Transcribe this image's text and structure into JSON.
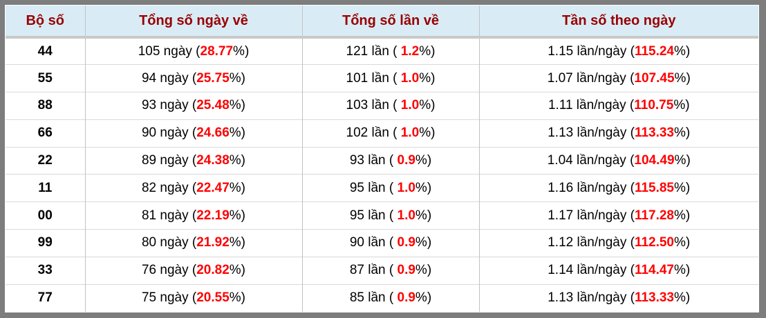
{
  "colors": {
    "frame_border": "#7d7d7d",
    "header_background": "#d9ecf6",
    "header_text": "#990000",
    "highlight_value": "#ff0000",
    "body_text": "#000000",
    "row_separator": "#d9d9d9",
    "column_separator": "#c2c2c2"
  },
  "table": {
    "headers": [
      "Bộ số",
      "Tổng số ngày về",
      "Tổng số lần về",
      "Tần số theo ngày"
    ],
    "rows": [
      {
        "pair": "44",
        "days": {
          "pre": "105 ngày (",
          "value": "28.77",
          "post": "%)"
        },
        "times": {
          "pre": "121 lần ( ",
          "value": "1.2",
          "post": "%)"
        },
        "freq": {
          "pre": "1.15 lần/ngày (",
          "value": "115.24",
          "post": "%)"
        }
      },
      {
        "pair": "55",
        "days": {
          "pre": "94 ngày (",
          "value": "25.75",
          "post": "%)"
        },
        "times": {
          "pre": "101 lần ( ",
          "value": "1.0",
          "post": "%)"
        },
        "freq": {
          "pre": "1.07 lần/ngày (",
          "value": "107.45",
          "post": "%)"
        }
      },
      {
        "pair": "88",
        "days": {
          "pre": "93 ngày (",
          "value": "25.48",
          "post": "%)"
        },
        "times": {
          "pre": "103 lần ( ",
          "value": "1.0",
          "post": "%)"
        },
        "freq": {
          "pre": "1.11 lần/ngày (",
          "value": "110.75",
          "post": "%)"
        }
      },
      {
        "pair": "66",
        "days": {
          "pre": "90 ngày (",
          "value": "24.66",
          "post": "%)"
        },
        "times": {
          "pre": "102 lần ( ",
          "value": "1.0",
          "post": "%)"
        },
        "freq": {
          "pre": "1.13 lần/ngày (",
          "value": "113.33",
          "post": "%)"
        }
      },
      {
        "pair": "22",
        "days": {
          "pre": "89 ngày (",
          "value": "24.38",
          "post": "%)"
        },
        "times": {
          "pre": "93 lần ( ",
          "value": "0.9",
          "post": "%)"
        },
        "freq": {
          "pre": "1.04 lần/ngày (",
          "value": "104.49",
          "post": "%)"
        }
      },
      {
        "pair": "11",
        "days": {
          "pre": "82 ngày (",
          "value": "22.47",
          "post": "%)"
        },
        "times": {
          "pre": "95 lần ( ",
          "value": "1.0",
          "post": "%)"
        },
        "freq": {
          "pre": "1.16 lần/ngày (",
          "value": "115.85",
          "post": "%)"
        }
      },
      {
        "pair": "00",
        "days": {
          "pre": "81 ngày (",
          "value": "22.19",
          "post": "%)"
        },
        "times": {
          "pre": "95 lần ( ",
          "value": "1.0",
          "post": "%)"
        },
        "freq": {
          "pre": "1.17 lần/ngày (",
          "value": "117.28",
          "post": "%)"
        }
      },
      {
        "pair": "99",
        "days": {
          "pre": "80 ngày (",
          "value": "21.92",
          "post": "%)"
        },
        "times": {
          "pre": "90 lần ( ",
          "value": "0.9",
          "post": "%)"
        },
        "freq": {
          "pre": "1.12 lần/ngày (",
          "value": "112.50",
          "post": "%)"
        }
      },
      {
        "pair": "33",
        "days": {
          "pre": "76 ngày (",
          "value": "20.82",
          "post": "%)"
        },
        "times": {
          "pre": "87 lần ( ",
          "value": "0.9",
          "post": "%)"
        },
        "freq": {
          "pre": "1.14 lần/ngày (",
          "value": "114.47",
          "post": "%)"
        }
      },
      {
        "pair": "77",
        "days": {
          "pre": "75 ngày (",
          "value": "20.55",
          "post": "%)"
        },
        "times": {
          "pre": "85 lần ( ",
          "value": "0.9",
          "post": "%)"
        },
        "freq": {
          "pre": "1.13 lần/ngày (",
          "value": "113.33",
          "post": "%)"
        }
      }
    ]
  }
}
